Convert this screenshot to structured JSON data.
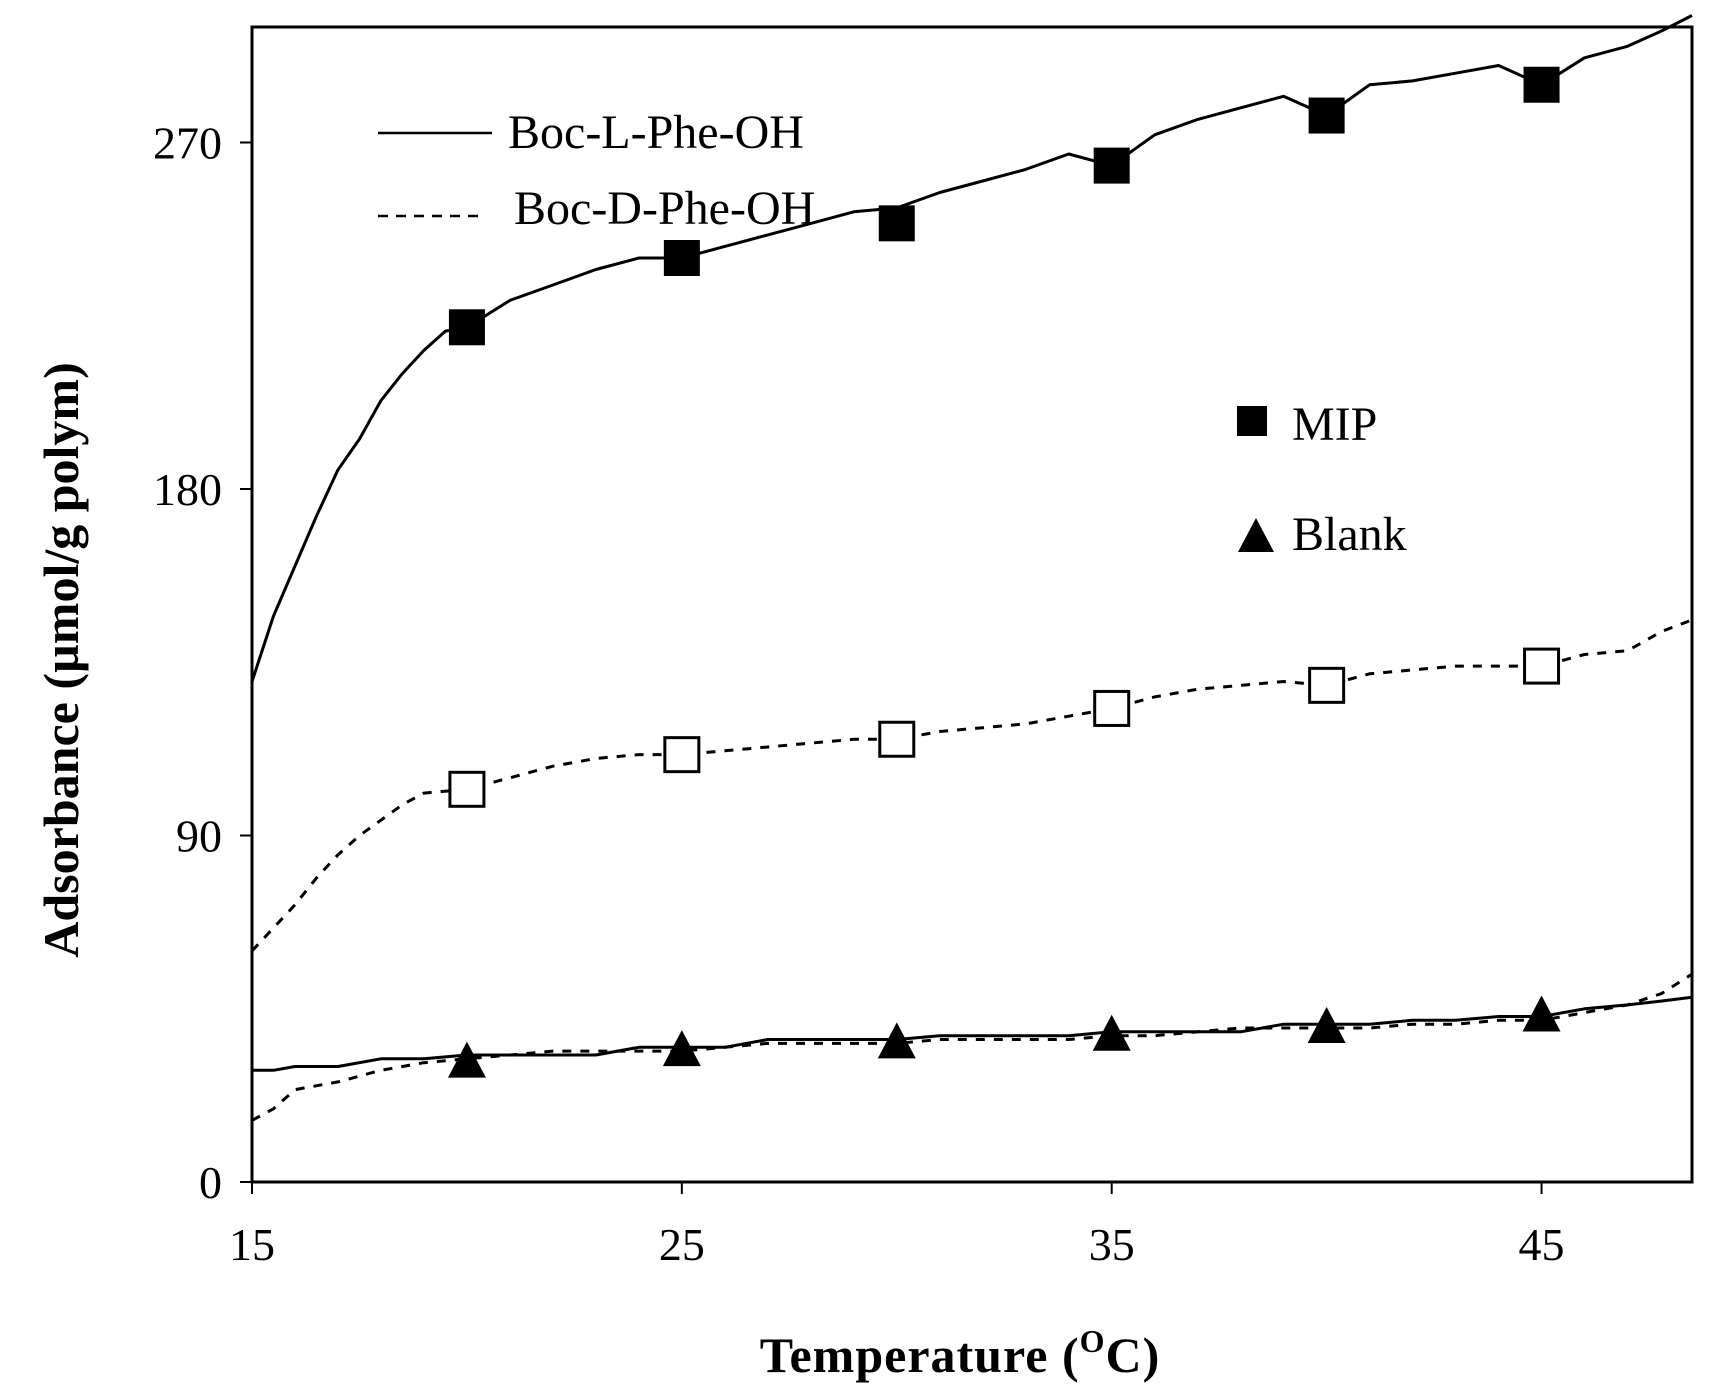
{
  "chart_data": {
    "type": "line",
    "xlabel": "Temperature (",
    "xlabel_sup": "O",
    "xlabel_end": "C)",
    "ylabel": "Adsorbance (µmol/g polym)",
    "xlim": [
      15,
      48.5
    ],
    "ylim": [
      0,
      300
    ],
    "xticks": [
      15,
      25,
      35,
      45
    ],
    "yticks": [
      0,
      90,
      180,
      270
    ],
    "xtick_labels": [
      "15",
      "25",
      "35",
      "45"
    ],
    "ytick_labels": [
      "0",
      "90",
      "180",
      "270"
    ],
    "grid": false,
    "line_legend": [
      {
        "label": "Boc-L-Phe-OH",
        "style": "solid"
      },
      {
        "label": "Boc-D-Phe-OH",
        "style": "dashed"
      }
    ],
    "marker_legend": [
      {
        "label": "MIP",
        "marker": "square"
      },
      {
        "label": "Blank",
        "marker": "triangle"
      }
    ],
    "series": [
      {
        "line": "solid",
        "marker": "filled-square",
        "x": [
          15,
          15.5,
          16,
          16.5,
          17,
          17.5,
          18,
          18.5,
          19,
          19.5,
          20,
          21,
          22,
          23,
          24,
          25,
          26,
          27,
          28,
          29,
          30,
          31,
          32,
          33,
          34,
          35,
          36,
          37,
          38,
          39,
          40,
          41,
          42,
          43,
          44,
          45,
          46,
          47,
          47.8,
          48.5
        ],
        "y": [
          130,
          147,
          160,
          173,
          185,
          193,
          203,
          210,
          216,
          221,
          222,
          229,
          233,
          237,
          240,
          240,
          243,
          246,
          249,
          252,
          253,
          257,
          260,
          263,
          267,
          264,
          272,
          276,
          279,
          282,
          277,
          285,
          286,
          288,
          290,
          285,
          292,
          295,
          299,
          303
        ],
        "marker_x": [
          20,
          25,
          30,
          35,
          40,
          45
        ],
        "marker_y": [
          222,
          240,
          249,
          264,
          277,
          285
        ]
      },
      {
        "line": "dashed",
        "marker": "open-square",
        "x": [
          15,
          15.5,
          16,
          16.5,
          17,
          17.5,
          18,
          18.5,
          19,
          20,
          21,
          22,
          23,
          24,
          25,
          26,
          27,
          28,
          29,
          30,
          31,
          32,
          33,
          34,
          35,
          36,
          37,
          38,
          39,
          40,
          41,
          42,
          43,
          44,
          45,
          46,
          47,
          47.8,
          48.5
        ],
        "y": [
          60,
          66,
          72,
          79,
          85,
          90,
          94,
          98,
          101,
          102,
          105,
          108,
          110,
          111,
          111,
          112,
          113,
          114,
          115,
          115,
          117,
          118,
          119,
          121,
          123,
          126,
          128,
          129,
          130,
          129,
          132,
          133,
          134,
          134,
          134,
          137,
          138,
          143,
          146
        ],
        "marker_x": [
          20,
          25,
          30,
          35,
          40,
          45
        ],
        "marker_y": [
          102,
          111,
          115,
          123,
          129,
          134
        ]
      },
      {
        "line": "solid",
        "marker": "filled-triangle",
        "x": [
          15,
          15.5,
          16,
          17,
          18,
          19,
          20,
          21,
          22,
          23,
          24,
          25,
          26,
          27,
          28,
          29,
          30,
          31,
          32,
          33,
          34,
          35,
          36,
          37,
          38,
          39,
          40,
          41,
          42,
          43,
          44,
          45,
          46,
          47,
          47.8,
          48.5
        ],
        "y": [
          29,
          29,
          30,
          30,
          32,
          32,
          33,
          33,
          33,
          33,
          35,
          35,
          35,
          37,
          37,
          37,
          37,
          38,
          38,
          38,
          38,
          39,
          39,
          39,
          39,
          41,
          41,
          41,
          42,
          42,
          43,
          43,
          45,
          46,
          47,
          48
        ],
        "marker_x": [
          20,
          25,
          30,
          35,
          40,
          45
        ],
        "marker_y": [
          31,
          34,
          36,
          38,
          40,
          43
        ]
      },
      {
        "line": "dashed",
        "marker": "none",
        "x": [
          15,
          15.5,
          16,
          17,
          18,
          19,
          20,
          21,
          22,
          23,
          24,
          25,
          26,
          27,
          28,
          29,
          30,
          31,
          32,
          33,
          34,
          35,
          36,
          37,
          38,
          39,
          40,
          41,
          42,
          43,
          44,
          45,
          46,
          47,
          47.8,
          48.5
        ],
        "y": [
          16,
          19,
          24,
          26,
          29,
          31,
          32,
          33,
          34,
          34,
          34,
          34,
          35,
          36,
          36,
          36,
          36,
          37,
          37,
          37,
          37,
          38,
          38,
          39,
          40,
          40,
          40,
          40,
          41,
          41,
          42,
          42,
          44,
          46,
          49,
          54
        ],
        "marker_x": [],
        "marker_y": []
      }
    ]
  }
}
